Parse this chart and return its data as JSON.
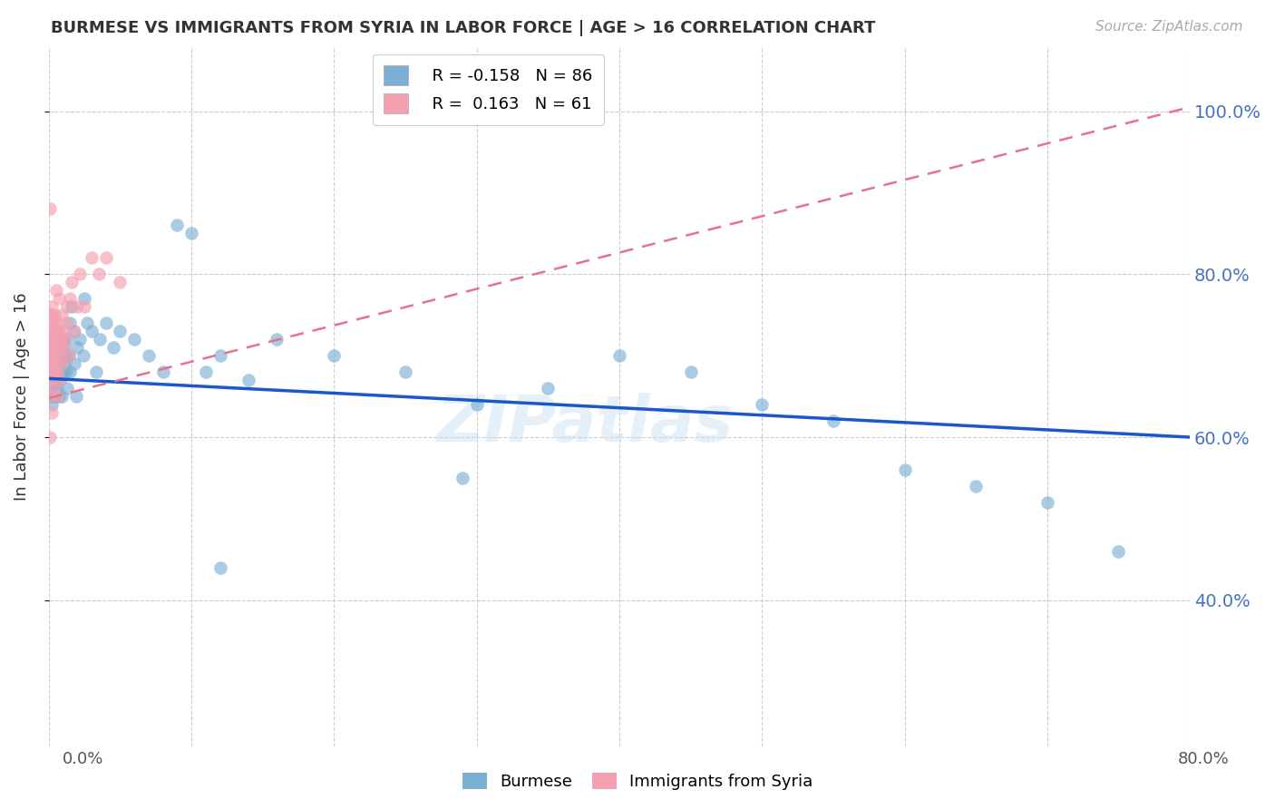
{
  "title": "BURMESE VS IMMIGRANTS FROM SYRIA IN LABOR FORCE | AGE > 16 CORRELATION CHART",
  "source": "Source: ZipAtlas.com",
  "ylabel": "In Labor Force | Age > 16",
  "y_ticks_right": [
    40.0,
    60.0,
    80.0,
    100.0
  ],
  "xlim": [
    0.0,
    0.8
  ],
  "ylim": [
    0.22,
    1.08
  ],
  "blue_R": -0.158,
  "blue_N": 86,
  "pink_R": 0.163,
  "pink_N": 61,
  "blue_color": "#7bafd4",
  "pink_color": "#f4a0b0",
  "blue_line_color": "#1a56cc",
  "pink_line_color": "#e87090",
  "watermark": "ZIPatlas",
  "blue_line_x0": 0.0,
  "blue_line_y0": 0.672,
  "blue_line_x1": 0.8,
  "blue_line_y1": 0.6,
  "pink_line_x0": 0.0,
  "pink_line_y0": 0.648,
  "pink_line_x1": 0.8,
  "pink_line_y1": 1.005,
  "blue_scatter_x": [
    0.001,
    0.001,
    0.001,
    0.001,
    0.002,
    0.002,
    0.002,
    0.002,
    0.002,
    0.003,
    0.003,
    0.003,
    0.003,
    0.003,
    0.004,
    0.004,
    0.004,
    0.004,
    0.005,
    0.005,
    0.005,
    0.005,
    0.006,
    0.006,
    0.006,
    0.006,
    0.007,
    0.007,
    0.007,
    0.007,
    0.008,
    0.008,
    0.008,
    0.009,
    0.009,
    0.009,
    0.01,
    0.01,
    0.01,
    0.011,
    0.011,
    0.012,
    0.012,
    0.013,
    0.013,
    0.014,
    0.015,
    0.015,
    0.016,
    0.017,
    0.018,
    0.019,
    0.02,
    0.022,
    0.024,
    0.025,
    0.027,
    0.03,
    0.033,
    0.036,
    0.04,
    0.045,
    0.05,
    0.06,
    0.07,
    0.08,
    0.09,
    0.1,
    0.11,
    0.12,
    0.14,
    0.16,
    0.2,
    0.25,
    0.3,
    0.35,
    0.4,
    0.45,
    0.5,
    0.55,
    0.6,
    0.65,
    0.7,
    0.75,
    0.29,
    0.12
  ],
  "blue_scatter_y": [
    0.68,
    0.7,
    0.65,
    0.67,
    0.69,
    0.71,
    0.68,
    0.66,
    0.64,
    0.7,
    0.67,
    0.69,
    0.65,
    0.72,
    0.7,
    0.68,
    0.66,
    0.71,
    0.69,
    0.67,
    0.65,
    0.73,
    0.7,
    0.68,
    0.66,
    0.71,
    0.7,
    0.68,
    0.72,
    0.65,
    0.69,
    0.67,
    0.71,
    0.7,
    0.68,
    0.65,
    0.7,
    0.68,
    0.72,
    0.69,
    0.71,
    0.68,
    0.7,
    0.72,
    0.66,
    0.7,
    0.74,
    0.68,
    0.76,
    0.73,
    0.69,
    0.65,
    0.71,
    0.72,
    0.7,
    0.77,
    0.74,
    0.73,
    0.68,
    0.72,
    0.74,
    0.71,
    0.73,
    0.72,
    0.7,
    0.68,
    0.86,
    0.85,
    0.68,
    0.7,
    0.67,
    0.72,
    0.7,
    0.68,
    0.64,
    0.66,
    0.7,
    0.68,
    0.64,
    0.62,
    0.56,
    0.54,
    0.52,
    0.46,
    0.55,
    0.44
  ],
  "pink_scatter_x": [
    0.001,
    0.001,
    0.001,
    0.001,
    0.001,
    0.001,
    0.001,
    0.001,
    0.001,
    0.001,
    0.002,
    0.002,
    0.002,
    0.002,
    0.002,
    0.002,
    0.002,
    0.002,
    0.003,
    0.003,
    0.003,
    0.003,
    0.003,
    0.003,
    0.004,
    0.004,
    0.004,
    0.004,
    0.005,
    0.005,
    0.005,
    0.005,
    0.006,
    0.006,
    0.006,
    0.006,
    0.007,
    0.007,
    0.007,
    0.008,
    0.008,
    0.008,
    0.009,
    0.009,
    0.01,
    0.01,
    0.011,
    0.012,
    0.013,
    0.014,
    0.015,
    0.016,
    0.018,
    0.02,
    0.022,
    0.025,
    0.03,
    0.035,
    0.04,
    0.05,
    0.001
  ],
  "pink_scatter_y": [
    0.68,
    0.7,
    0.67,
    0.71,
    0.69,
    0.73,
    0.65,
    0.72,
    0.75,
    0.6,
    0.74,
    0.71,
    0.69,
    0.75,
    0.73,
    0.7,
    0.76,
    0.63,
    0.72,
    0.68,
    0.74,
    0.71,
    0.73,
    0.66,
    0.7,
    0.72,
    0.75,
    0.68,
    0.73,
    0.71,
    0.78,
    0.69,
    0.72,
    0.74,
    0.68,
    0.65,
    0.71,
    0.73,
    0.77,
    0.7,
    0.72,
    0.67,
    0.75,
    0.69,
    0.73,
    0.71,
    0.72,
    0.74,
    0.76,
    0.7,
    0.77,
    0.79,
    0.73,
    0.76,
    0.8,
    0.76,
    0.82,
    0.8,
    0.82,
    0.79,
    0.88
  ]
}
